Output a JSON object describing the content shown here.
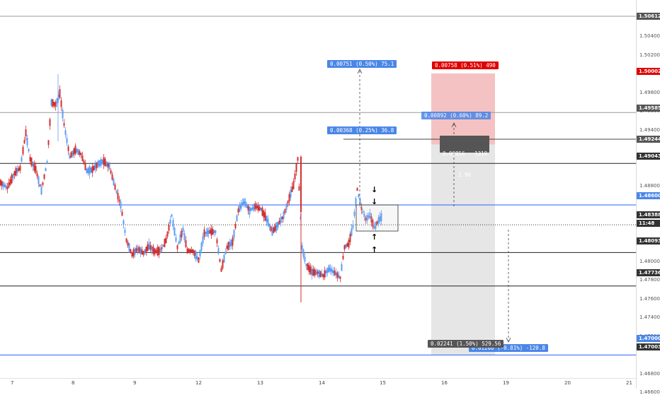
{
  "colors": {
    "candle_up": "#5b9cf6",
    "candle_down": "#d32f2f",
    "hline_dark": "#222222",
    "hline_blue": "#2962ff",
    "tag_blue": "#4a86e8",
    "tag_red": "#e00000",
    "tag_gray": "#555555",
    "zone_red": "#f4c2c2",
    "zone_gray": "#e6e6e6"
  },
  "price_axis": {
    "ticks": [
      "1.50400",
      "1.50200",
      "1.49800",
      "1.49600",
      "1.49400",
      "1.48800",
      "1.48400",
      "1.48200",
      "1.48000",
      "1.47800",
      "1.47600",
      "1.47400",
      "1.47200",
      "1.46800",
      "1.46600"
    ],
    "badges": [
      {
        "label": "1.50612",
        "color": "#555555"
      },
      {
        "label": "1.50002",
        "color": "#e00000"
      },
      {
        "label": "1.49585",
        "color": "#555555"
      },
      {
        "label": "1.49244",
        "color": "#555555"
      },
      {
        "label": "1.49043",
        "color": "#333333"
      },
      {
        "label": "1.48600",
        "color": "#4a86e8"
      },
      {
        "label": "1.48388",
        "color": "#333333"
      },
      {
        "label": "11:48",
        "color": "#333333"
      },
      {
        "label": "1.48093",
        "color": "#333333"
      },
      {
        "label": "1.47736",
        "color": "#333333"
      },
      {
        "label": "1.47000",
        "color": "#4a86e8"
      },
      {
        "label": "1.47003",
        "color": "#333333"
      }
    ]
  },
  "time_axis": {
    "labels": [
      "7",
      "8",
      "9",
      "12",
      "13",
      "14",
      "15",
      "16",
      "19",
      "20",
      "21"
    ]
  },
  "horizontal_levels": [
    {
      "price": 1.50612,
      "style": "gray"
    },
    {
      "price": 1.49585,
      "style": "gray"
    },
    {
      "price": 1.49043,
      "style": "dark"
    },
    {
      "price": 1.486,
      "style": "blue"
    },
    {
      "price": 1.48388,
      "style": "dotted"
    },
    {
      "price": 1.48093,
      "style": "dark"
    },
    {
      "price": 1.47736,
      "style": "dark"
    },
    {
      "price": 1.47,
      "style": "blue"
    }
  ],
  "measure_tags": {
    "top": "0.00751 (0.50%) 75.1",
    "mid": "0.00368 (0.25%) 36.8",
    "target": "0.00758 (0.51%) 490",
    "zone_inner": "0.00892 (0.60%) 89.2",
    "ratio_line1": "0.00856 - 1319",
    "ratio_line2": "2.96",
    "stop": "0.02241 (1.50%) 529.56",
    "bottom": "0.01208 (-0.81%) -120.8"
  },
  "icons": {
    "arrow_down": "↓",
    "arrow_up": "↑"
  }
}
